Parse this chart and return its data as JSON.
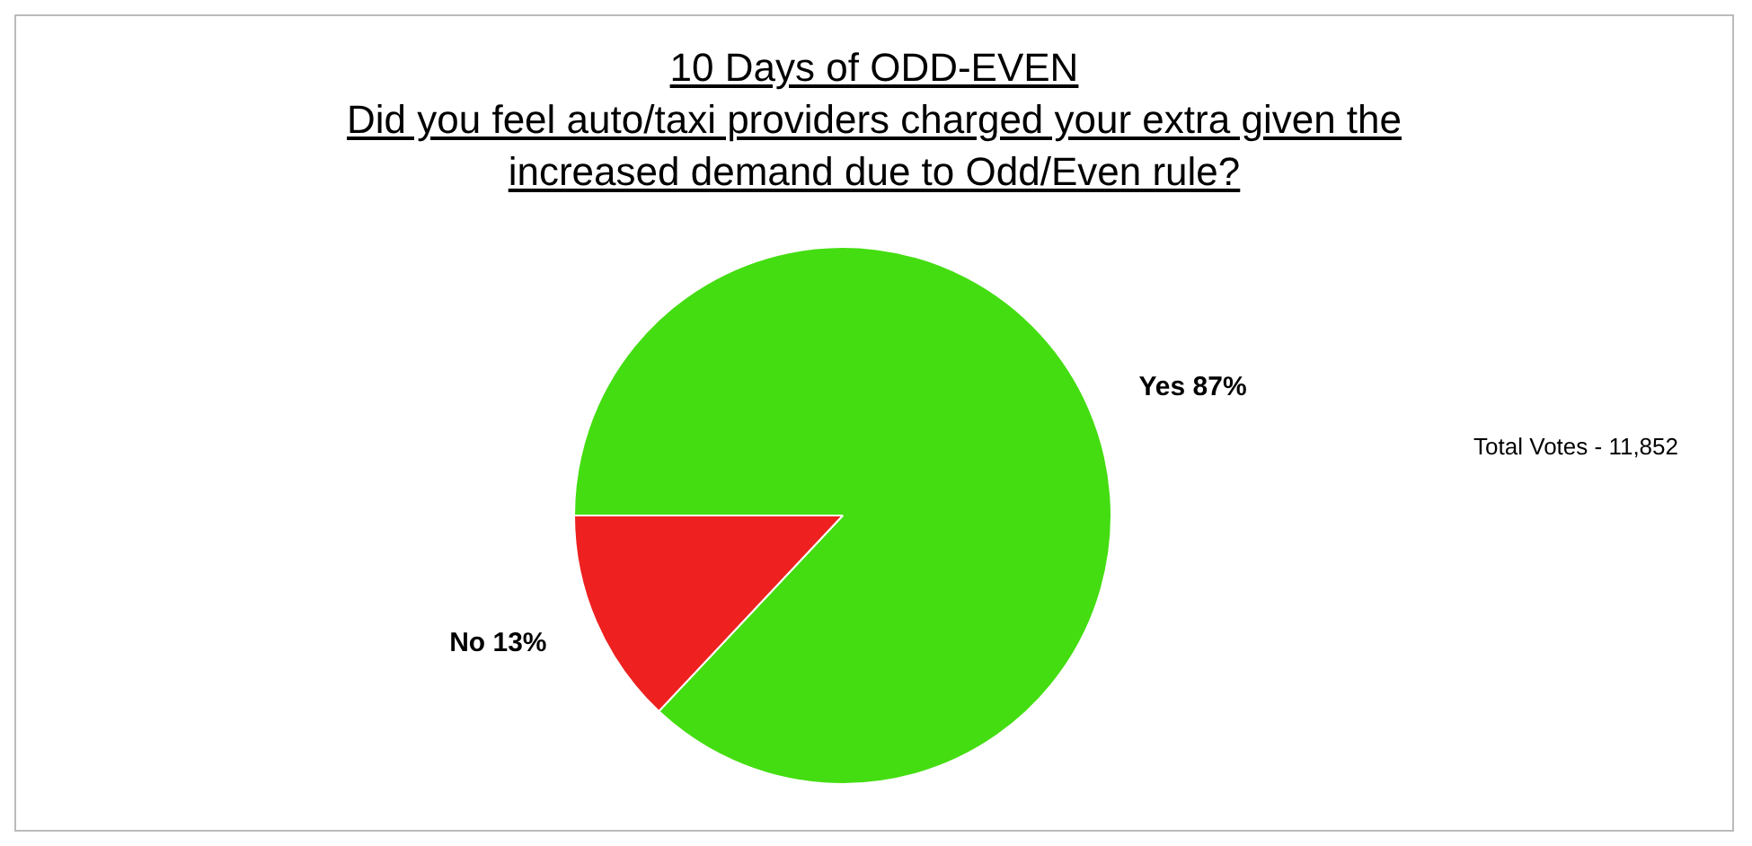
{
  "chart_data": {
    "type": "pie",
    "title": "10 Days of ODD-EVEN\nDid you feel auto/taxi providers charged your extra given the\nincreased demand due to Odd/Even rule?",
    "categories": [
      "Yes",
      "No"
    ],
    "values": [
      87,
      13
    ],
    "colors": [
      "#44dd11",
      "#ee2020"
    ],
    "value_labels": [
      "87%",
      "13%"
    ],
    "annotations": [
      "Total Votes - 11,852"
    ],
    "legend": false
  }
}
